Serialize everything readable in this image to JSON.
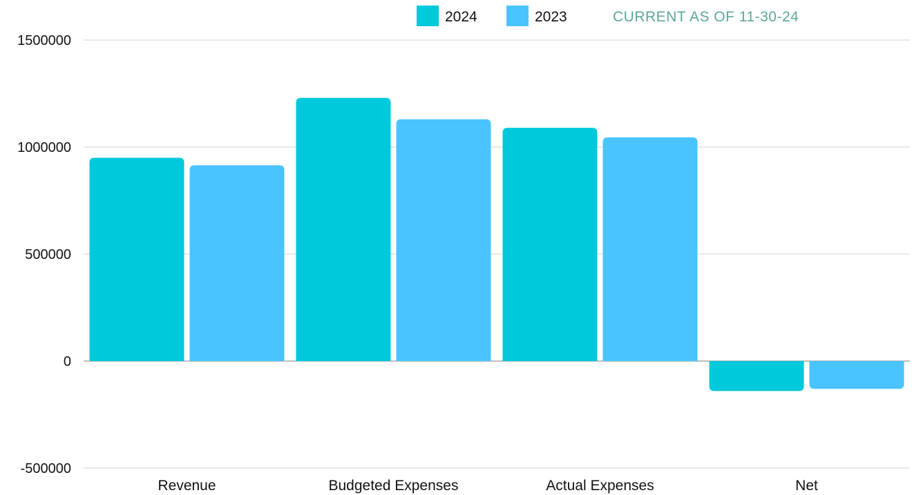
{
  "chart_data": {
    "type": "bar",
    "categories": [
      "Revenue",
      "Budgeted Expenses",
      "Actual Expenses",
      "Net"
    ],
    "series": [
      {
        "name": "2024",
        "color": "#00C9DB",
        "values": [
          950000,
          1230000,
          1090000,
          -140000
        ]
      },
      {
        "name": "2023",
        "color": "#4AC4FF",
        "values": [
          915000,
          1130000,
          1045000,
          -130000
        ]
      }
    ],
    "title": "",
    "xlabel": "",
    "ylabel": "",
    "ylim": [
      -500000,
      1500000
    ],
    "yticks": [
      1500000,
      1000000,
      500000,
      0,
      -500000
    ],
    "ytick_labels": [
      "1500000",
      "1000000",
      "500000",
      "0",
      "-500000"
    ],
    "grid": true,
    "legend_position": "top",
    "annotation": {
      "text": "CURRENT AS OF 11-30-24",
      "color": "#5BA79A"
    }
  }
}
